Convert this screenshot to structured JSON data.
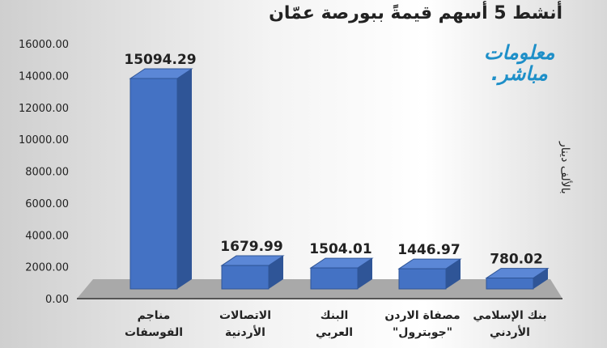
{
  "chart_data": {
    "type": "bar",
    "title": "أنشط 5 أسهم قيمةً ببورصة عمّان",
    "ylabel": "بالألف دينار",
    "categories": [
      "مناجم الفوسفات",
      "الاتصالات الأردنية",
      "البنك العربي",
      "مصفاة الاردن \"جوبترول\"",
      "بنك الإسلامي الأردني"
    ],
    "values": [
      15094.29,
      1679.99,
      1504.01,
      1446.97,
      780.02
    ],
    "data_labels": [
      "15094.29",
      "1679.99",
      "1504.01",
      "1446.97",
      "780.02"
    ],
    "yticks": [
      "0.00",
      "2000.00",
      "4000.00",
      "6000.00",
      "8000.00",
      "10000.00",
      "12000.00",
      "14000.00",
      "16000.00"
    ],
    "ylim": [
      0,
      16000
    ],
    "grid": false,
    "bar_color": "#4472c4"
  },
  "logo": {
    "line1": "معلومات",
    "line2": "مباشر."
  }
}
